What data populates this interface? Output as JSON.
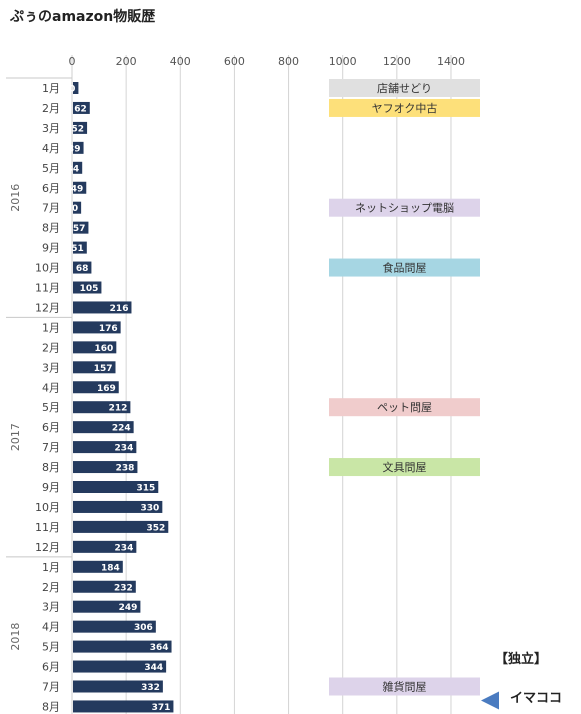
{
  "title": "ぷぅのamazon物販歴",
  "legend_note": "【独立】",
  "marker_label": "イマココ",
  "colors": {
    "bar": "#243a5e",
    "grid": "#d4d4d4"
  },
  "chart_data": {
    "type": "bar",
    "orientation": "horizontal",
    "xlim": [
      0,
      1500
    ],
    "xticks": [
      0,
      200,
      400,
      600,
      800,
      1000,
      1200,
      1400
    ],
    "years": [
      {
        "label": "2016",
        "months": [
          "1月",
          "2月",
          "3月",
          "4月",
          "5月",
          "6月",
          "7月",
          "8月",
          "9月",
          "10月",
          "11月",
          "12月"
        ],
        "values": [
          20,
          62,
          52,
          39,
          34,
          49,
          30,
          57,
          51,
          68,
          105,
          216
        ]
      },
      {
        "label": "2017",
        "months": [
          "1月",
          "2月",
          "3月",
          "4月",
          "5月",
          "6月",
          "7月",
          "8月",
          "9月",
          "10月",
          "11月",
          "12月"
        ],
        "values": [
          176,
          160,
          157,
          169,
          212,
          224,
          234,
          238,
          315,
          330,
          352,
          234
        ]
      },
      {
        "label": "2018",
        "months": [
          "1月",
          "2月",
          "3月",
          "4月",
          "5月",
          "6月",
          "7月",
          "8月"
        ],
        "values": [
          184,
          232,
          249,
          306,
          364,
          344,
          332,
          371
        ]
      }
    ],
    "annotations": [
      {
        "text": "店舗せどり",
        "row": 0,
        "color": "#e0e0e0"
      },
      {
        "text": "ヤフオク中古",
        "row": 1,
        "color": "#fde07a"
      },
      {
        "text": "ネットショップ電脳",
        "row": 6,
        "color": "#ddd3ea"
      },
      {
        "text": "食品問屋",
        "row": 9,
        "color": "#a6d6e3"
      },
      {
        "text": "ペット問屋",
        "row": 16,
        "color": "#f0cccc"
      },
      {
        "text": "文具問屋",
        "row": 19,
        "color": "#c9e6a6"
      },
      {
        "text": "雑貨問屋",
        "row": 30,
        "color": "#ddd3ea"
      }
    ]
  }
}
